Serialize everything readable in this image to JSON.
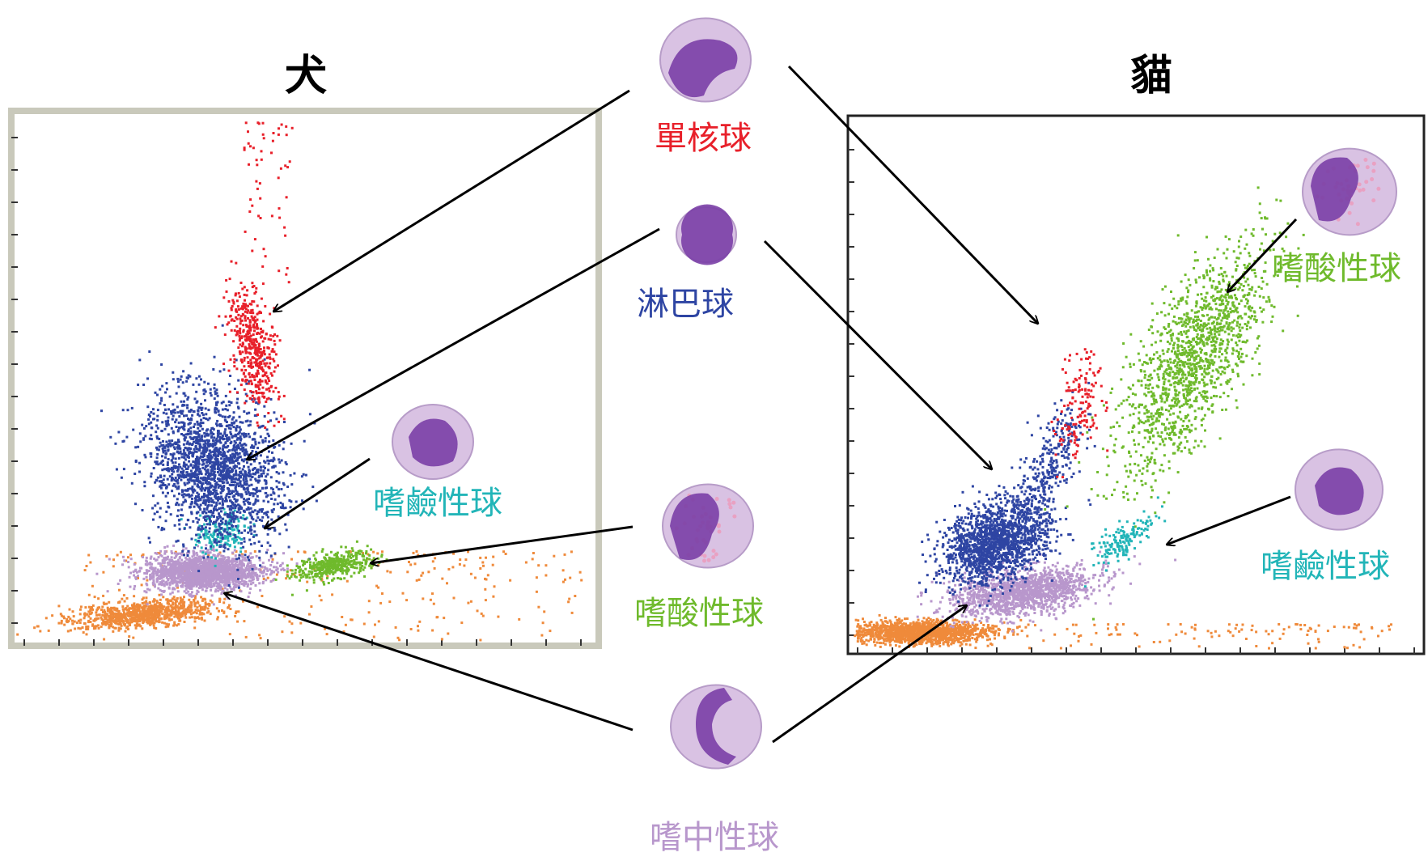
{
  "titles": {
    "dog": "犬",
    "cat": "貓"
  },
  "colors": {
    "monocyte": "#e8202a",
    "lymphocyte": "#2e45a3",
    "eosinophil": "#6fba2c",
    "basophil": "#22b5b8",
    "neutrophil": "#b897cc",
    "debris": "#ef8a3b",
    "frame_dog": "#c9c9bb",
    "frame_cat": "#222222",
    "arrow": "#000000",
    "cell_body": "#d9c2e3",
    "cell_nucleus": "#7a3fa6"
  },
  "labels": {
    "monocyte": "單核球",
    "lymphocyte": "淋巴球",
    "basophil_dog": "嗜鹼性球",
    "eosinophil_center": "嗜酸性球",
    "neutrophil": "嗜中性球",
    "eosinophil_cat": "嗜酸性球",
    "basophil_cat": "嗜鹼性球"
  },
  "icons": {
    "monocyte": "monocyte-cell-icon",
    "lymphocyte": "lymphocyte-cell-icon",
    "basophil": "basophil-cell-icon",
    "eosinophil": "eosinophil-cell-icon",
    "neutrophil": "neutrophil-cell-icon"
  }
}
